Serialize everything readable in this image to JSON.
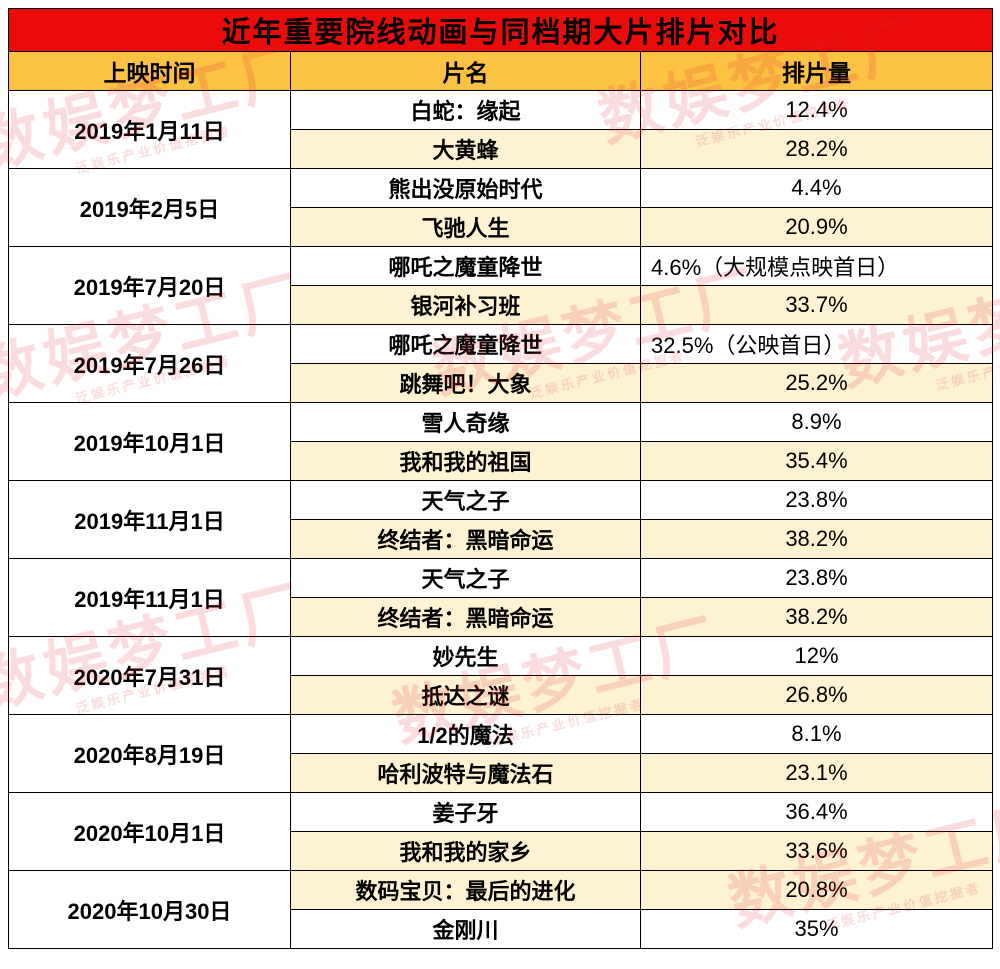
{
  "watermark": {
    "main": "数娱梦工厂",
    "sub": "泛娱乐产业价值挖掘者"
  },
  "colors": {
    "title_bg": "#ea0b0b",
    "title_text": "#ffd84d",
    "header_bg": "#fcc243",
    "row_cream": "#fdf2d2",
    "row_white": "#ffffff",
    "border": "#000000",
    "watermark_red": "#de2632"
  },
  "chart_data": {
    "type": "table",
    "title": "近年重要院线动画与同档期大片排片对比",
    "columns": [
      "上映时间",
      "片名",
      "排片量"
    ],
    "groups": [
      {
        "date": "2019年1月11日",
        "rows": [
          {
            "film": "白蛇：缘起",
            "rate": "12.4%",
            "shade": "white"
          },
          {
            "film": "大黄蜂",
            "rate": "28.2%",
            "shade": "cream"
          }
        ]
      },
      {
        "date": "2019年2月5日",
        "rows": [
          {
            "film": "熊出没原始时代",
            "rate": "4.4%",
            "shade": "white"
          },
          {
            "film": "飞驰人生",
            "rate": "20.9%",
            "shade": "cream"
          }
        ]
      },
      {
        "date": "2019年7月20日",
        "rows": [
          {
            "film": "哪吒之魔童降世",
            "rate": "4.6%（大规模点映首日）",
            "shade": "white"
          },
          {
            "film": "银河补习班",
            "rate": "33.7%",
            "shade": "cream"
          }
        ]
      },
      {
        "date": "2019年7月26日",
        "rows": [
          {
            "film": "哪吒之魔童降世",
            "rate": "32.5%（公映首日）",
            "shade": "white"
          },
          {
            "film": "跳舞吧！大象",
            "rate": "25.2%",
            "shade": "cream"
          }
        ]
      },
      {
        "date": "2019年10月1日",
        "rows": [
          {
            "film": "雪人奇缘",
            "rate": "8.9%",
            "shade": "white"
          },
          {
            "film": "我和我的祖国",
            "rate": "35.4%",
            "shade": "cream"
          }
        ]
      },
      {
        "date": "2019年11月1日",
        "rows": [
          {
            "film": "天气之子",
            "rate": "23.8%",
            "shade": "white"
          },
          {
            "film": "终结者：黑暗命运",
            "rate": "38.2%",
            "shade": "cream"
          }
        ]
      },
      {
        "date": "2019年11月1日",
        "rows": [
          {
            "film": "天气之子",
            "rate": "23.8%",
            "shade": "white"
          },
          {
            "film": "终结者：黑暗命运",
            "rate": "38.2%",
            "shade": "cream"
          }
        ]
      },
      {
        "date": "2020年7月31日",
        "rows": [
          {
            "film": "妙先生",
            "rate": "12%",
            "shade": "white"
          },
          {
            "film": "抵达之谜",
            "rate": "26.8%",
            "shade": "cream"
          }
        ]
      },
      {
        "date": "2020年8月19日",
        "rows": [
          {
            "film": "1/2的魔法",
            "rate": "8.1%",
            "shade": "white"
          },
          {
            "film": "哈利波特与魔法石",
            "rate": "23.1%",
            "shade": "cream"
          }
        ]
      },
      {
        "date": "2020年10月1日",
        "rows": [
          {
            "film": "姜子牙",
            "rate": "36.4%",
            "shade": "white"
          },
          {
            "film": "我和我的家乡",
            "rate": "33.6%",
            "shade": "cream"
          }
        ]
      },
      {
        "date": "2020年10月30日",
        "rows": [
          {
            "film": "数码宝贝：最后的进化",
            "rate": "20.8%",
            "shade": "cream"
          },
          {
            "film": "金刚川",
            "rate": "35%",
            "shade": "white"
          }
        ]
      }
    ]
  }
}
